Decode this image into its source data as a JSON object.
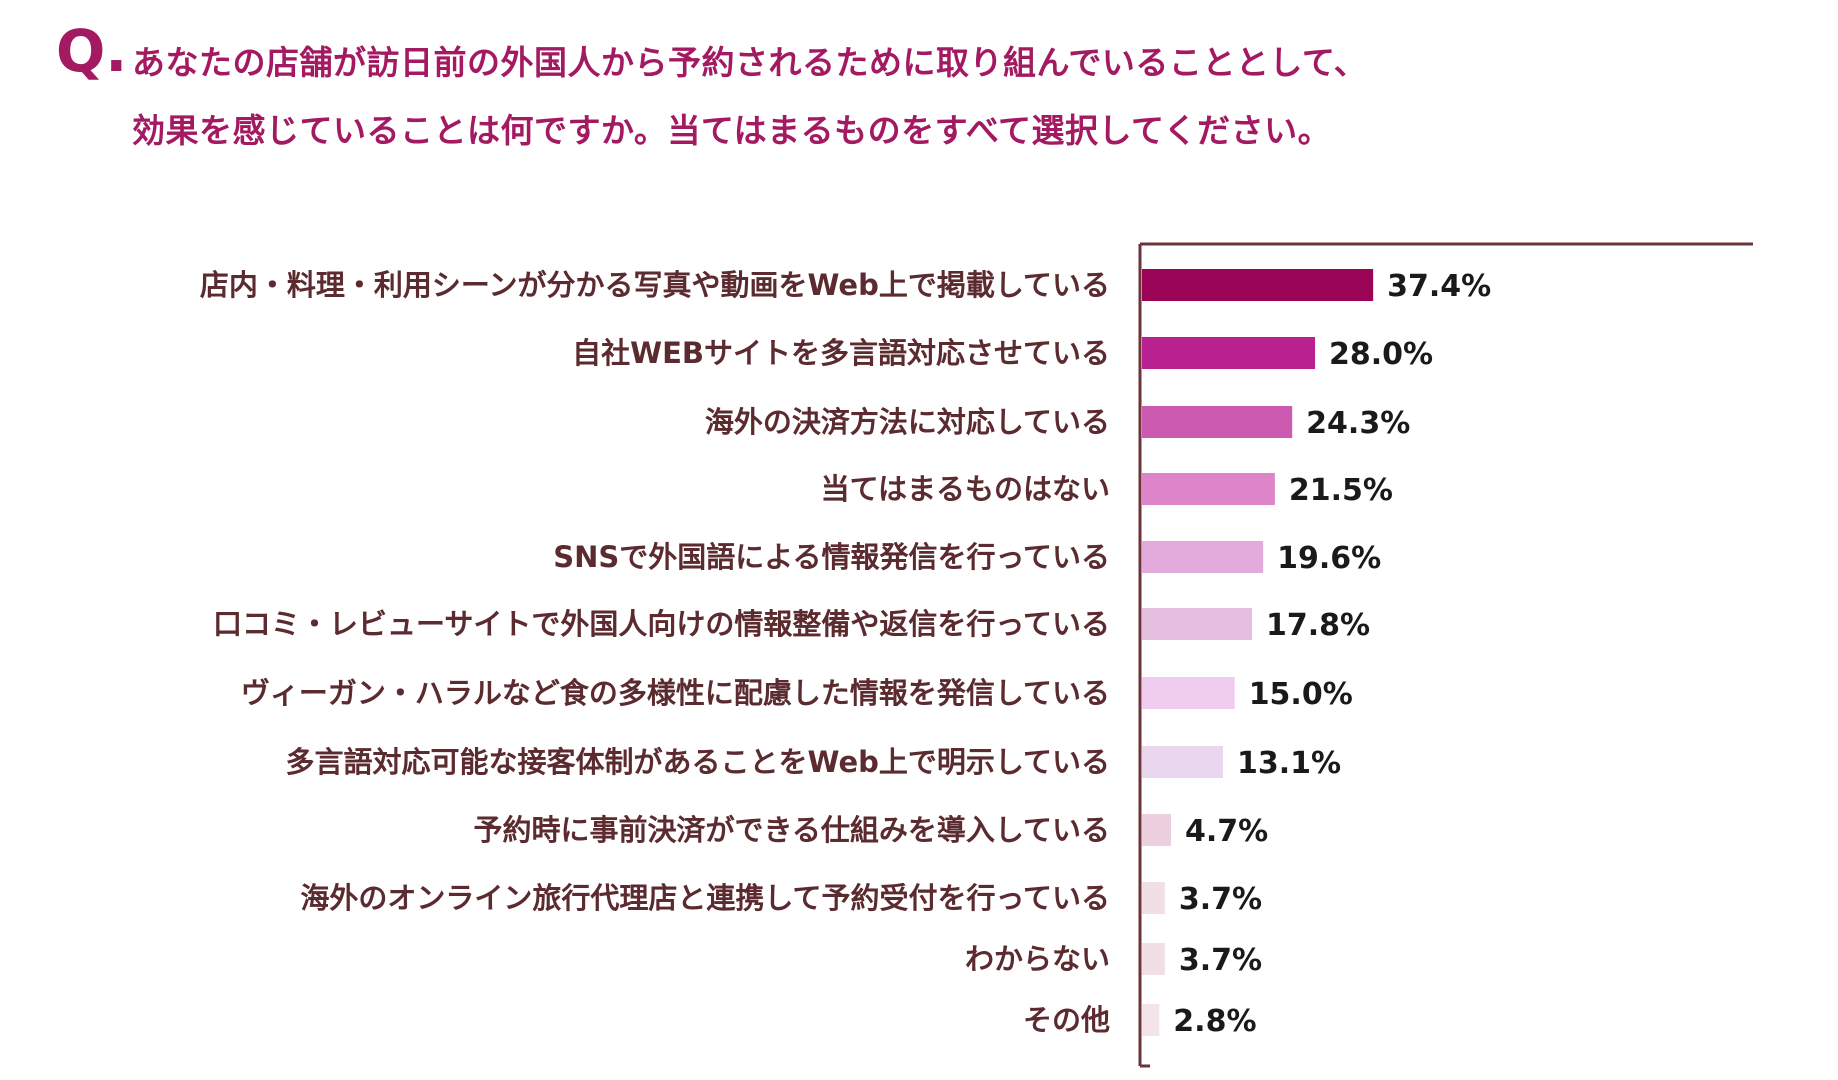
{
  "question": {
    "prefix": "Q.",
    "line1": "あなたの店舗が訪日前の外国人から予約されるために取り組んでいることとして、",
    "line2": "効果を感じていることは何ですか。当てはまるものをすべて選択してください。"
  },
  "chart_data": {
    "type": "bar",
    "orientation": "horizontal",
    "title": "",
    "xlabel": "",
    "ylabel": "",
    "xlim": [
      0,
      100
    ],
    "grid": false,
    "categories": [
      "店内・料理・利用シーンが分かる写真や動画をWeb上で掲載している",
      "自社WEBサイトを多言語対応させている",
      "海外の決済方法に対応している",
      "当てはまるものはない",
      "SNSで外国語による情報発信を行っている",
      "口コミ・レビューサイトで外国人向けの情報整備や返信を行っている",
      "ヴィーガン・ハラルなど食の多様性に配慮した情報を発信している",
      "多言語対応可能な接客体制があることをWeb上で明示している",
      "予約時に事前決済ができる仕組みを導入している",
      "海外のオンライン旅行代理店と連携して予約受付を行っている",
      "わからない",
      "その他"
    ],
    "values": [
      37.4,
      28.0,
      24.3,
      21.5,
      19.6,
      17.8,
      15.0,
      13.1,
      4.7,
      3.7,
      3.7,
      2.8
    ],
    "value_labels": [
      "37.4%",
      "28.0%",
      "24.3%",
      "21.5%",
      "19.6%",
      "17.8%",
      "15.0%",
      "13.1%",
      "4.7%",
      "3.7%",
      "3.7%",
      "2.8%"
    ],
    "colors": [
      "#9b0557",
      "#b8218f",
      "#cb5ab0",
      "#dd85c8",
      "#e3aadc",
      "#e4bfdf",
      "#f0ccef",
      "#ead6ef",
      "#ecd0df",
      "#f0e0e6",
      "#f0e0e6",
      "#f2e4e8"
    ]
  },
  "colors": {
    "title": "#a31a62",
    "axis": "#6b3438",
    "label": "#5b2b2f"
  }
}
